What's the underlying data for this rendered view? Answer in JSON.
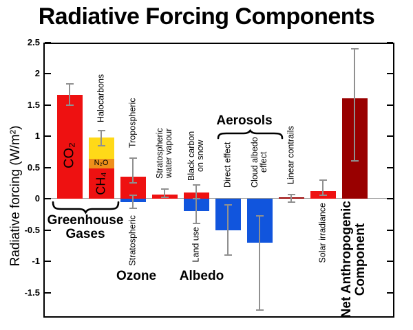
{
  "chart_data": {
    "type": "bar",
    "title": "Radiative Forcing Components",
    "ylabel": "Radiative forcing (W/m²)",
    "ylim": [
      -1.9,
      2.5
    ],
    "yticks": [
      2.5,
      2,
      1.5,
      1,
      0.5,
      0,
      -0.5,
      -1,
      -1.5
    ],
    "grid": false,
    "legend": "none",
    "unit": "W/m²",
    "colors": {
      "red": "#ee1111",
      "blue": "#1155dd",
      "orange": "#ee8f1a",
      "yellow": "#ffd918",
      "darkred": "#990000",
      "error_bar": "#909090"
    },
    "columns": [
      {
        "id": "co2",
        "segments": [
          {
            "label": "CO₂",
            "from": 0,
            "to": 1.66,
            "color": "red"
          }
        ],
        "errors": [
          [
            1.49,
            1.83
          ]
        ]
      },
      {
        "id": "other-ghg",
        "label_above": "Halocarbons",
        "segments": [
          {
            "label": "CH₄",
            "from": 0,
            "to": 0.48,
            "color": "red"
          },
          {
            "label": "N₂O",
            "from": 0.48,
            "to": 0.64,
            "color": "orange"
          },
          {
            "label": "",
            "from": 0.64,
            "to": 0.98,
            "color": "yellow"
          }
        ],
        "errors": [
          [
            0.85,
            1.09
          ]
        ]
      },
      {
        "id": "ozone",
        "label_above": "Tropospheric",
        "label_below": "Stratospheric",
        "segments": [
          {
            "label": "",
            "from": 0,
            "to": 0.35,
            "color": "red"
          },
          {
            "label": "",
            "from": -0.05,
            "to": 0,
            "color": "blue"
          }
        ],
        "errors": [
          [
            0.25,
            0.65
          ],
          [
            -0.15,
            0.05
          ]
        ]
      },
      {
        "id": "strat-water-vapour",
        "label_above": "Stratospheric\nwater vapour",
        "segments": [
          {
            "label": "",
            "from": 0,
            "to": 0.07,
            "color": "red"
          }
        ],
        "errors": [
          [
            0.02,
            0.15
          ]
        ]
      },
      {
        "id": "surface-albedo",
        "label_above": "Black carbon\non snow",
        "label_below": "Land use",
        "segments": [
          {
            "label": "",
            "from": 0,
            "to": 0.1,
            "color": "red"
          },
          {
            "label": "",
            "from": -0.2,
            "to": 0,
            "color": "blue"
          }
        ],
        "errors": [
          [
            0.0,
            0.22
          ],
          [
            -0.4,
            0.0
          ]
        ]
      },
      {
        "id": "aerosol-direct",
        "label_above": "Direct effect",
        "segments": [
          {
            "label": "",
            "from": -0.5,
            "to": 0,
            "color": "blue"
          }
        ],
        "errors": [
          [
            -0.9,
            -0.1
          ]
        ]
      },
      {
        "id": "aerosol-cloud-albedo",
        "label_above": "Cloud albedo\neffect",
        "segments": [
          {
            "label": "",
            "from": -0.7,
            "to": 0,
            "color": "blue"
          }
        ],
        "errors": [
          [
            -1.78,
            -0.28
          ]
        ]
      },
      {
        "id": "linear-contrails",
        "label_above": "Linear contrails",
        "segments": [
          {
            "label": "",
            "from": 0,
            "to": 0.02,
            "color": "darkred"
          }
        ],
        "errors": [
          [
            -0.05,
            0.07
          ]
        ]
      },
      {
        "id": "solar-irradiance",
        "label_below": "Solar irradiance",
        "segments": [
          {
            "label": "",
            "from": 0,
            "to": 0.12,
            "color": "red"
          }
        ],
        "errors": [
          [
            0.06,
            0.3
          ]
        ]
      },
      {
        "id": "net-anthropogenic",
        "label_below": "Net Anthropogenic\nComponent",
        "segments": [
          {
            "label": "",
            "from": 0,
            "to": 1.6,
            "color": "darkred"
          }
        ],
        "errors": [
          [
            0.6,
            2.4
          ]
        ]
      }
    ],
    "group_labels": [
      {
        "text": "Greenhouse\nGases",
        "brace": "under",
        "spans_columns": [
          "co2",
          "other-ghg"
        ]
      },
      {
        "text": "Ozone",
        "brace": "none",
        "spans_columns": [
          "ozone"
        ]
      },
      {
        "text": "Albedo",
        "brace": "none",
        "spans_columns": [
          "surface-albedo"
        ]
      },
      {
        "text": "Aerosols",
        "brace": "over",
        "spans_columns": [
          "aerosol-direct",
          "aerosol-cloud-albedo"
        ]
      }
    ]
  }
}
